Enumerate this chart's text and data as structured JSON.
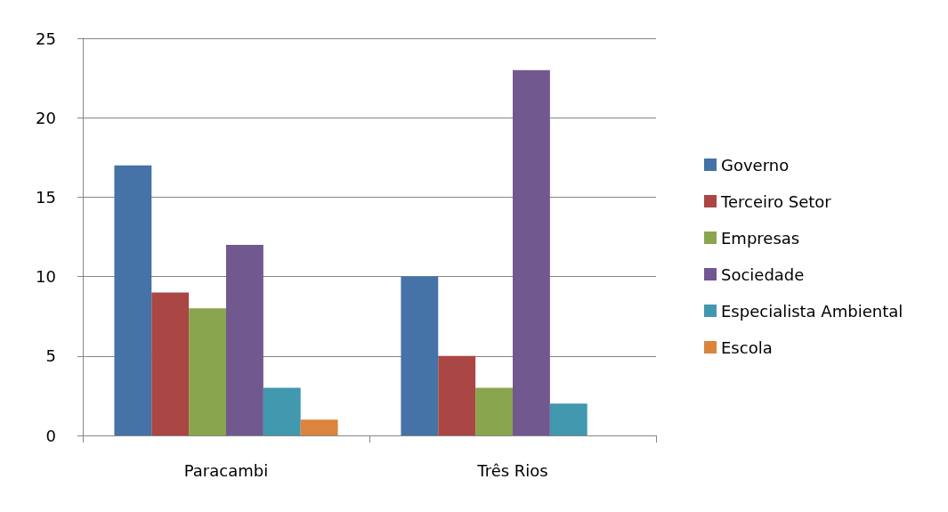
{
  "chart_data": {
    "type": "bar",
    "categories": [
      "Paracambi",
      "Três Rios"
    ],
    "series": [
      {
        "name": "Governo",
        "color": "#4572a7",
        "values": [
          17,
          10
        ]
      },
      {
        "name": "Terceiro Setor",
        "color": "#aa4643",
        "values": [
          9,
          5
        ]
      },
      {
        "name": "Empresas",
        "color": "#89a54e",
        "values": [
          8,
          3
        ]
      },
      {
        "name": "Sociedade",
        "color": "#71588f",
        "values": [
          12,
          23
        ]
      },
      {
        "name": "Especialista Ambiental",
        "color": "#4198af",
        "values": [
          3,
          2
        ]
      },
      {
        "name": "Escola",
        "color": "#db843d",
        "values": [
          1,
          null
        ]
      }
    ],
    "ylim": [
      0,
      25
    ],
    "yticks": [
      0,
      5,
      10,
      15,
      20,
      25
    ],
    "grid": "y",
    "legend": "right"
  }
}
